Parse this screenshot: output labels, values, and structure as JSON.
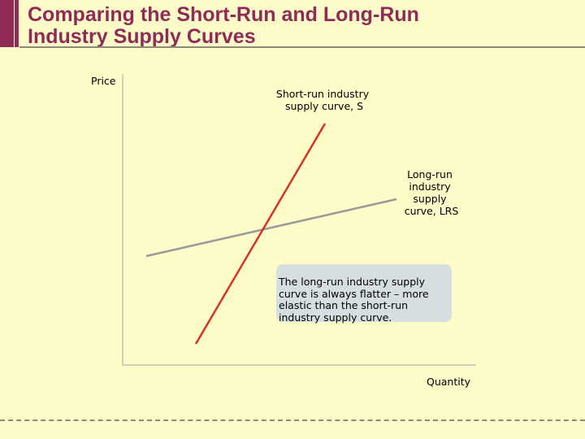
{
  "slide": {
    "title_line1": "Comparing the Short-Run and Long-Run",
    "title_line2": "Industry Supply Curves",
    "accent_color": "#8e2b57",
    "background_color": "#fdfbc8"
  },
  "diagram": {
    "y_axis_label": "Price",
    "x_axis_label": "Quantity",
    "short_run": {
      "label_lines": [
        "Short-run industry",
        "supply curve, S"
      ],
      "color": "#d8322a",
      "slope": "steep"
    },
    "long_run": {
      "label_lines": [
        "Long-run",
        "industry",
        "supply",
        "curve, LRS"
      ],
      "color": "#9a9a9a",
      "slope": "flat"
    }
  },
  "callout": {
    "lines": [
      "The long-run industry supply",
      "curve is always flatter – more",
      "elastic than the short-run",
      "industry supply curve."
    ],
    "background_color": "#d6dee0"
  }
}
